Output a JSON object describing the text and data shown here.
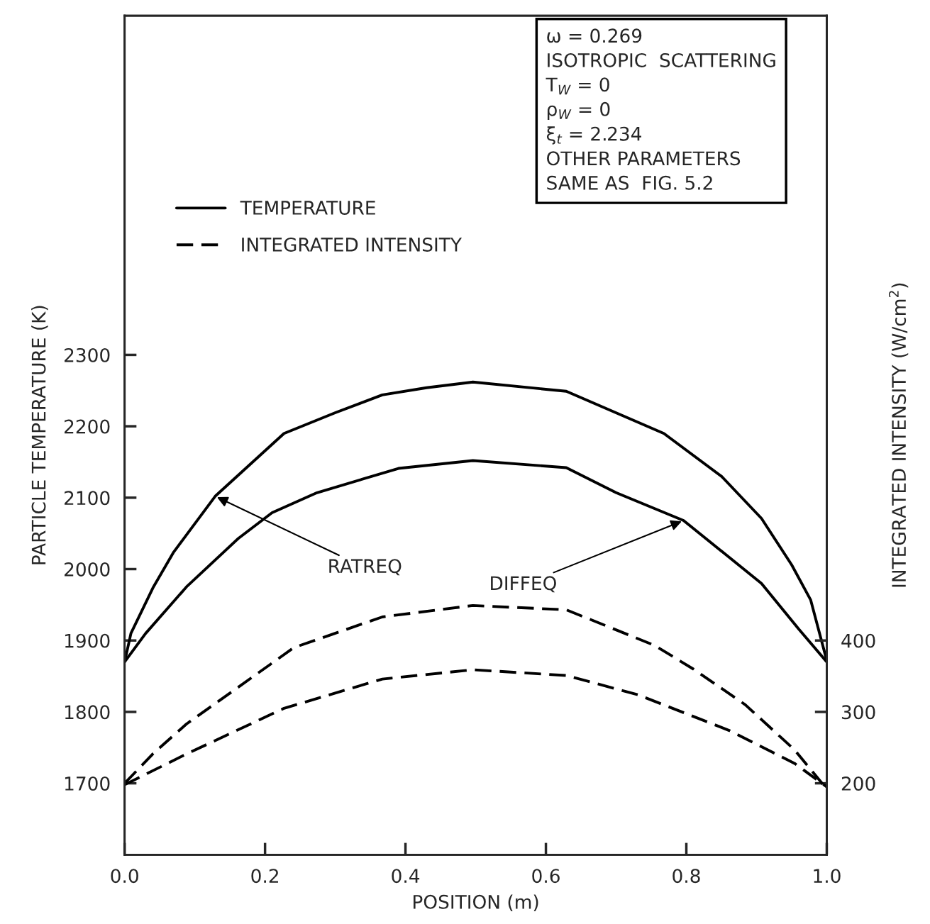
{
  "chart_data": {
    "type": "line",
    "xlabel": "POSITION (m)",
    "ylabel": "PARTICLE TEMPERATURE (K)",
    "y2label": "INTEGRATED INTENSITY (W/cm$^{2}$)",
    "xlim": [
      0,
      1
    ],
    "xticks": [
      {
        "value": 0,
        "label": "0.0"
      },
      0.2,
      0.4,
      0.6,
      0.8,
      {
        "value": 1,
        "label": "1.0"
      }
    ],
    "ylim": [
      1600,
      2775
    ],
    "yticks": [
      1700,
      1800,
      1900,
      2000,
      2100,
      2200,
      2300
    ],
    "y2lim": [
      100,
      1275
    ],
    "y2ticks": [
      200,
      300,
      400
    ],
    "grid": false,
    "legend": "top left",
    "marker": "none",
    "series": [
      {
        "name": "TEMPERATURE",
        "color": "#000000",
        "line_style": "solid",
        "x": [
          0,
          0.009,
          0.041,
          0.07,
          0.129,
          0.227,
          0.3,
          0.367,
          0.43,
          0.496,
          0.629,
          0.768,
          0.85,
          0.907,
          0.95,
          0.977,
          1
        ],
        "values": [
          1870,
          1910,
          1975,
          2024,
          2102,
          2190,
          2219,
          2244,
          2254,
          2262,
          2249,
          2190,
          2130,
          2071,
          2006,
          1957,
          1872
        ]
      },
      {
        "color": "#000000",
        "line_style": "solid",
        "x": [
          0,
          0.03,
          0.088,
          0.162,
          0.21,
          0.274,
          0.39,
          0.496,
          0.629,
          0.7,
          0.796,
          0.907,
          0.96,
          1
        ],
        "values": [
          1870,
          1910,
          1975,
          2043,
          2079,
          2107,
          2141,
          2152,
          2142,
          2107,
          2068,
          1980,
          1916,
          1870
        ]
      },
      {
        "name": "INTEGRATED INTENSITY",
        "color": "#000000",
        "line_style": "dashed",
        "axis": "y2",
        "x": [
          0,
          0.04,
          0.088,
          0.241,
          0.367,
          0.496,
          0.629,
          0.755,
          0.81,
          0.884,
          0.954,
          1
        ],
        "values": [
          200,
          241,
          283,
          390,
          433,
          449,
          443,
          393,
          360,
          310,
          247,
          192
        ]
      },
      {
        "color": "#000000",
        "line_style": "dashed",
        "axis": "y2",
        "x": [
          0,
          0.088,
          0.227,
          0.367,
          0.496,
          0.629,
          0.731,
          0.861,
          0.954,
          1
        ],
        "values": [
          198,
          241,
          305,
          346,
          359,
          351,
          324,
          274,
          228,
          195
        ]
      }
    ],
    "annotations": [
      {
        "text": "RATREQ",
        "x": 0.129,
        "y": 2102
      },
      {
        "text": "DIFFEQ",
        "x": 0.796,
        "y": 2068
      },
      "ω = 0.269\nISOTROPIC  SCATTERING\nT$_{W}$ = 0\nρ$_{W}$ = 0\nξ$_{t}$ = 2.234\nOTHER PARAMETERS\nSAME AS  FIG. 5.2"
    ]
  }
}
